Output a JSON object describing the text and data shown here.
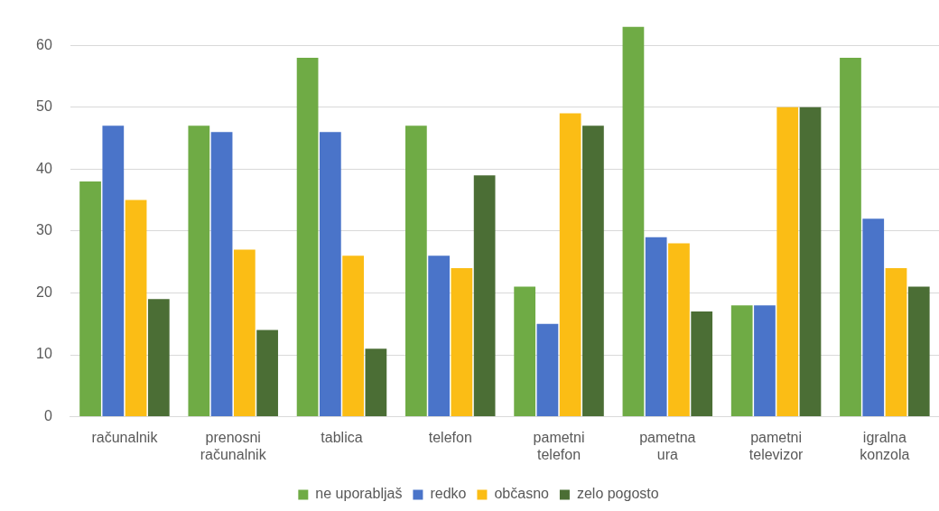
{
  "chart_data": {
    "type": "bar",
    "categories": [
      "računalnik",
      "prenosni računalnik",
      "tablica",
      "telefon",
      "pametni telefon",
      "pametna ura",
      "pametni televizor",
      "igralna konzola"
    ],
    "series": [
      {
        "name": "ne uporabljaš",
        "color": "#6fab45",
        "values": [
          38,
          47,
          58,
          47,
          21,
          63,
          18,
          58
        ]
      },
      {
        "name": "redko",
        "color": "#4a74c9",
        "values": [
          47,
          46,
          46,
          26,
          15,
          29,
          18,
          32
        ]
      },
      {
        "name": "občasno",
        "color": "#fbbd15",
        "values": [
          35,
          27,
          26,
          24,
          49,
          28,
          50,
          24
        ]
      },
      {
        "name": "zelo pogosto",
        "color": "#4b6e35",
        "values": [
          19,
          14,
          11,
          39,
          47,
          17,
          50,
          21
        ]
      }
    ],
    "ylim": [
      0,
      63
    ],
    "yticks": [
      0,
      10,
      20,
      30,
      40,
      50,
      60
    ],
    "grid": "y",
    "legend": "bottom"
  }
}
